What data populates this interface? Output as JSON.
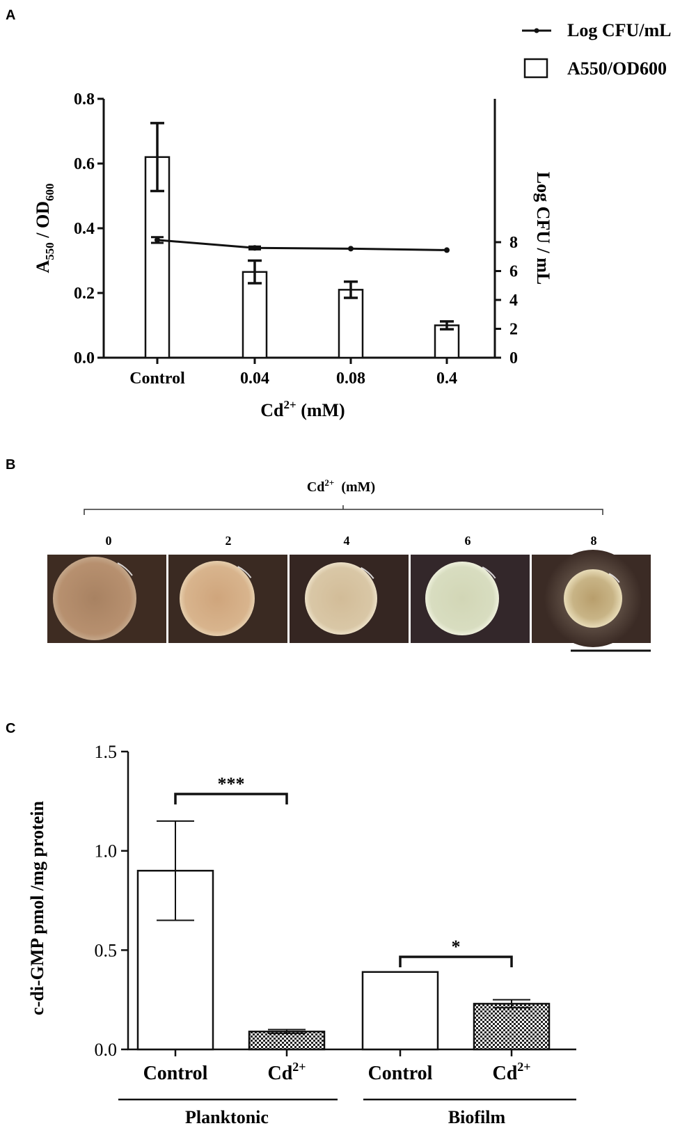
{
  "panels": {
    "A": "A",
    "B": "B",
    "C": "C"
  },
  "chart_data": [
    {
      "panel": "A",
      "type": "bar",
      "categories": [
        "Control",
        "0.04",
        "0.08",
        "0.4"
      ],
      "xlabel": "Cd2+ (mM)",
      "xlabel_base": "Cd",
      "xlabel_sup": "2+",
      "xlabel_rest": " (mM)",
      "ylabel_left": "A550 / OD600",
      "ylabel_left_parts": {
        "A": "A",
        "sub1": "550",
        "mid": " / OD",
        "sub2": "600"
      },
      "ylabel_right": "Log CFU / mL",
      "ylim_left": [
        0,
        0.8
      ],
      "yticks_left": [
        "0.0",
        "0.2",
        "0.4",
        "0.6",
        "0.8"
      ],
      "ylim_right": [
        0,
        9
      ],
      "yticks_right": [
        "0",
        "2",
        "4",
        "6",
        "8"
      ],
      "legend_placement": "top-right",
      "series": [
        {
          "name": "A550/OD600",
          "kind": "bar",
          "axis": "left",
          "values": [
            0.62,
            0.265,
            0.21,
            0.1
          ],
          "errors": [
            0.105,
            0.035,
            0.025,
            0.012
          ]
        },
        {
          "name": "Log CFU/mL",
          "kind": "line",
          "axis": "right",
          "values": [
            8.15,
            7.6,
            7.55,
            7.45
          ],
          "errors": [
            0.2,
            0.1,
            0.0,
            0.0
          ]
        }
      ]
    },
    {
      "panel": "B",
      "type": "image-row",
      "title": "Cd2+ (mM)",
      "title_base": "Cd",
      "title_sup": "2+",
      "title_rest": "  (mM)",
      "concentrations": [
        "0",
        "2",
        "4",
        "6",
        "8"
      ]
    },
    {
      "panel": "C",
      "type": "bar",
      "categories": [
        "Control",
        "Cd2+",
        "Control",
        "Cd2+"
      ],
      "category_labels": [
        {
          "base": "Control",
          "sup": ""
        },
        {
          "base": "Cd",
          "sup": "2+"
        },
        {
          "base": "Control",
          "sup": ""
        },
        {
          "base": "Cd",
          "sup": "2+"
        }
      ],
      "groups": [
        "Planktonic",
        "Biofilm"
      ],
      "ylabel": "c-di-GMP pmol /mg protein",
      "ylim": [
        0,
        1.5
      ],
      "yticks": [
        "0.0",
        "0.5",
        "1.0",
        "1.5"
      ],
      "values": [
        0.9,
        0.09,
        0.39,
        0.23
      ],
      "errors": [
        0.25,
        0.01,
        0.0,
        0.02
      ],
      "fills": [
        "open",
        "checkered",
        "open",
        "checkered"
      ],
      "significance": [
        {
          "label": "***",
          "between": [
            0,
            1
          ]
        },
        {
          "label": "*",
          "between": [
            2,
            3
          ]
        }
      ]
    }
  ],
  "colors": {
    "ink": "#111111",
    "plate_bg": "#3b2b25",
    "colony_0": "#b7906f",
    "colony_2": "#d8b48d",
    "colony_4": "#d9c7a6",
    "colony_6": "#d8ddc0",
    "colony_8": "#c8b486"
  }
}
